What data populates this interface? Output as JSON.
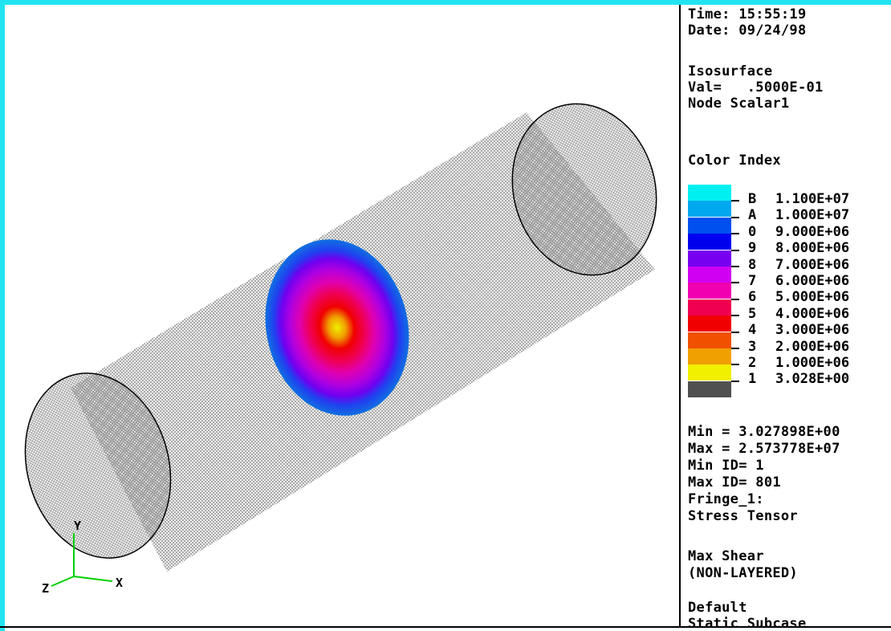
{
  "info": {
    "time": "Time: 15:55:19",
    "date": "Date: 09/24/98",
    "iso_title": "Isosurface",
    "iso_val": "Val=   .5000E-01",
    "iso_node": "Node Scalar1",
    "color_index_title": "Color Index",
    "min": "Min = 3.027898E+00",
    "max": "Max = 2.573778E+07",
    "min_id": "Min ID= 1",
    "max_id": "Max ID= 801",
    "fringe": "Fringe_1:",
    "stress": "Stress Tensor",
    "shear": "Max Shear",
    "layered": "(NON-LAYERED)",
    "default": "Default",
    "subcase": "Static Subcase"
  },
  "legend": [
    {
      "label": "B",
      "value": "1.100E+07",
      "color": "#00f0f0"
    },
    {
      "label": "A",
      "value": "1.000E+07",
      "color": "#00a8f0"
    },
    {
      "label": "0",
      "value": "9.000E+06",
      "color": "#0050f0"
    },
    {
      "label": "9",
      "value": "8.000E+06",
      "color": "#0000f0"
    },
    {
      "label": "8",
      "value": "7.000E+06",
      "color": "#7800f0"
    },
    {
      "label": "7",
      "value": "6.000E+06",
      "color": "#d000f0"
    },
    {
      "label": "6",
      "value": "5.000E+06",
      "color": "#f000b0"
    },
    {
      "label": "5",
      "value": "4.000E+06",
      "color": "#f00050"
    },
    {
      "label": "4",
      "value": "3.000E+06",
      "color": "#f00000"
    },
    {
      "label": "3",
      "value": "2.000E+06",
      "color": "#f05000"
    },
    {
      "label": "2",
      "value": "1.000E+06",
      "color": "#f0a000"
    },
    {
      "label": "1",
      "value": "3.028E+00",
      "color": "#f0f000"
    }
  ],
  "legend_bottom_color": "#505050",
  "axes": {
    "x": "X",
    "y": "Y",
    "z": "Z",
    "color": "#00d000"
  },
  "mesh_color": "#8a8a8a"
}
